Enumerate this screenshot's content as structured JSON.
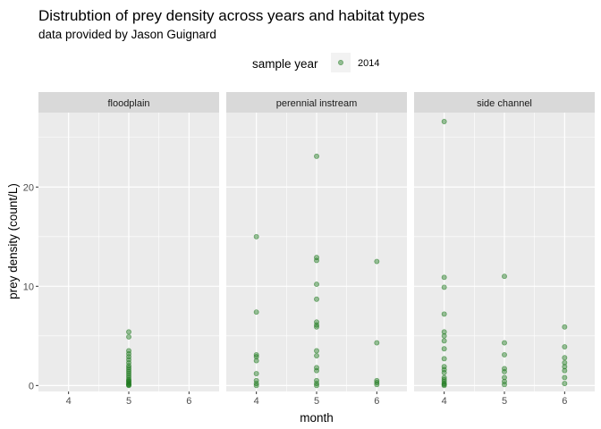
{
  "chart_data": {
    "type": "scatter",
    "title": "Distrubtion of prey density across years and habitat types",
    "subtitle": "data provided by Jason Guignard",
    "xlabel": "month",
    "ylabel": "prey density (count/L)",
    "xlim": [
      3.5,
      6.5
    ],
    "ylim": [
      -0.6,
      27.5
    ],
    "x_ticks": [
      4,
      5,
      6
    ],
    "y_ticks": [
      0,
      10,
      20
    ],
    "grid": true,
    "legend": {
      "title": "sample year",
      "placement": "top",
      "entries": [
        "2014"
      ]
    },
    "point_color": "#1f7a1f",
    "panels": [
      {
        "name": "floodplain",
        "points": [
          {
            "x": 5,
            "y": 5.4
          },
          {
            "x": 5,
            "y": 4.9
          },
          {
            "x": 5,
            "y": 3.5
          },
          {
            "x": 5,
            "y": 3.2
          },
          {
            "x": 5,
            "y": 2.9
          },
          {
            "x": 5,
            "y": 2.6
          },
          {
            "x": 5,
            "y": 2.3
          },
          {
            "x": 5,
            "y": 2.0
          },
          {
            "x": 5,
            "y": 1.8
          },
          {
            "x": 5,
            "y": 1.6
          },
          {
            "x": 5,
            "y": 1.4
          },
          {
            "x": 5,
            "y": 1.2
          },
          {
            "x": 5,
            "y": 1.0
          },
          {
            "x": 5,
            "y": 0.8
          },
          {
            "x": 5,
            "y": 0.6
          },
          {
            "x": 5,
            "y": 0.5
          },
          {
            "x": 5,
            "y": 0.4
          },
          {
            "x": 5,
            "y": 0.3
          },
          {
            "x": 5,
            "y": 0.2
          },
          {
            "x": 5,
            "y": 0.1
          },
          {
            "x": 5,
            "y": 0.05
          },
          {
            "x": 5,
            "y": 0.0
          }
        ]
      },
      {
        "name": "perennial instream",
        "points": [
          {
            "x": 4,
            "y": 15.0
          },
          {
            "x": 4,
            "y": 7.4
          },
          {
            "x": 4,
            "y": 3.1
          },
          {
            "x": 4,
            "y": 2.9
          },
          {
            "x": 4,
            "y": 2.5
          },
          {
            "x": 4,
            "y": 1.2
          },
          {
            "x": 4,
            "y": 0.5
          },
          {
            "x": 4,
            "y": 0.2
          },
          {
            "x": 4,
            "y": 0.0
          },
          {
            "x": 5,
            "y": 23.1
          },
          {
            "x": 5,
            "y": 12.9
          },
          {
            "x": 5,
            "y": 12.6
          },
          {
            "x": 5,
            "y": 10.2
          },
          {
            "x": 5,
            "y": 8.7
          },
          {
            "x": 5,
            "y": 6.4
          },
          {
            "x": 5,
            "y": 6.1
          },
          {
            "x": 5,
            "y": 5.9
          },
          {
            "x": 5,
            "y": 3.5
          },
          {
            "x": 5,
            "y": 3.0
          },
          {
            "x": 5,
            "y": 1.8
          },
          {
            "x": 5,
            "y": 1.5
          },
          {
            "x": 5,
            "y": 0.5
          },
          {
            "x": 5,
            "y": 0.2
          },
          {
            "x": 5,
            "y": 0.0
          },
          {
            "x": 6,
            "y": 12.5
          },
          {
            "x": 6,
            "y": 4.3
          },
          {
            "x": 6,
            "y": 0.5
          },
          {
            "x": 6,
            "y": 0.3
          },
          {
            "x": 6,
            "y": 0.1
          }
        ]
      },
      {
        "name": "side channel",
        "points": [
          {
            "x": 4,
            "y": 26.6
          },
          {
            "x": 4,
            "y": 10.9
          },
          {
            "x": 4,
            "y": 9.9
          },
          {
            "x": 4,
            "y": 7.2
          },
          {
            "x": 4,
            "y": 5.4
          },
          {
            "x": 4,
            "y": 5.0
          },
          {
            "x": 4,
            "y": 4.5
          },
          {
            "x": 4,
            "y": 3.7
          },
          {
            "x": 4,
            "y": 2.7
          },
          {
            "x": 4,
            "y": 1.9
          },
          {
            "x": 4,
            "y": 1.6
          },
          {
            "x": 4,
            "y": 1.3
          },
          {
            "x": 4,
            "y": 0.8
          },
          {
            "x": 4,
            "y": 0.6
          },
          {
            "x": 4,
            "y": 0.4
          },
          {
            "x": 4,
            "y": 0.2
          },
          {
            "x": 4,
            "y": 0.1
          },
          {
            "x": 4,
            "y": 0.0
          },
          {
            "x": 5,
            "y": 11.0
          },
          {
            "x": 5,
            "y": 4.3
          },
          {
            "x": 5,
            "y": 3.1
          },
          {
            "x": 5,
            "y": 1.7
          },
          {
            "x": 5,
            "y": 1.4
          },
          {
            "x": 5,
            "y": 0.8
          },
          {
            "x": 5,
            "y": 0.4
          },
          {
            "x": 5,
            "y": 0.1
          },
          {
            "x": 6,
            "y": 5.9
          },
          {
            "x": 6,
            "y": 3.9
          },
          {
            "x": 6,
            "y": 2.8
          },
          {
            "x": 6,
            "y": 2.3
          },
          {
            "x": 6,
            "y": 1.9
          },
          {
            "x": 6,
            "y": 1.5
          },
          {
            "x": 6,
            "y": 0.8
          },
          {
            "x": 6,
            "y": 0.2
          }
        ]
      }
    ]
  }
}
